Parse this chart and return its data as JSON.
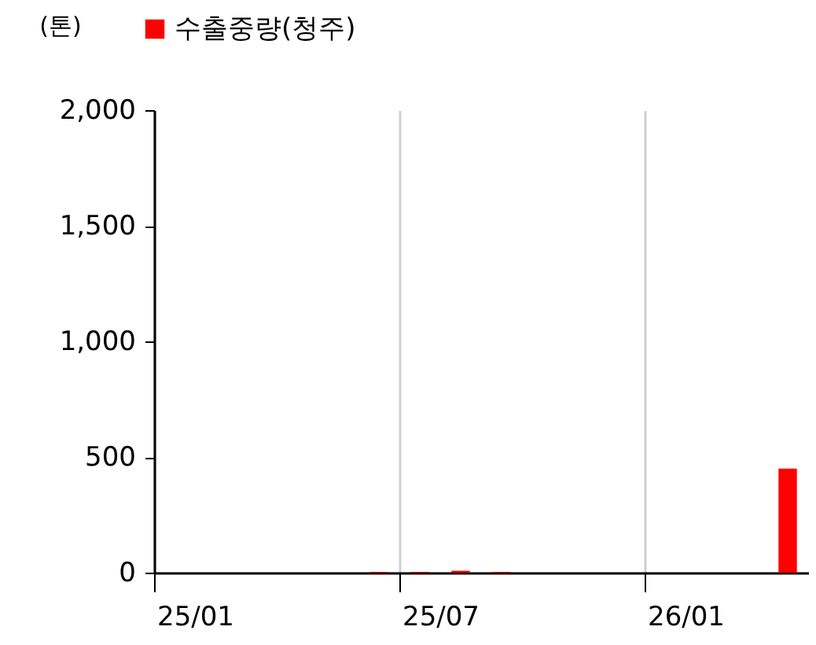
{
  "chart_data": {
    "type": "bar",
    "ylabel": "(톤)",
    "categories": [
      "25/01",
      null,
      null,
      null,
      null,
      null,
      "25/07",
      null,
      null,
      null,
      null,
      null,
      "26/01",
      null,
      null,
      null
    ],
    "series": [
      {
        "name": "수출중량(청주)",
        "color": "#ff0000",
        "values": [
          0,
          0,
          0,
          0,
          0,
          3,
          3,
          8,
          3,
          0,
          0,
          0,
          0,
          0,
          0,
          450
        ]
      }
    ],
    "ylim": [
      0,
      2000
    ],
    "yticks": [
      0,
      500,
      {
        "value": 1000,
        "label": "1,000"
      },
      {
        "value": 1500,
        "label": "1,500"
      },
      {
        "value": 2000,
        "label": "2,000"
      }
    ],
    "grid": "x",
    "legend": "top"
  }
}
